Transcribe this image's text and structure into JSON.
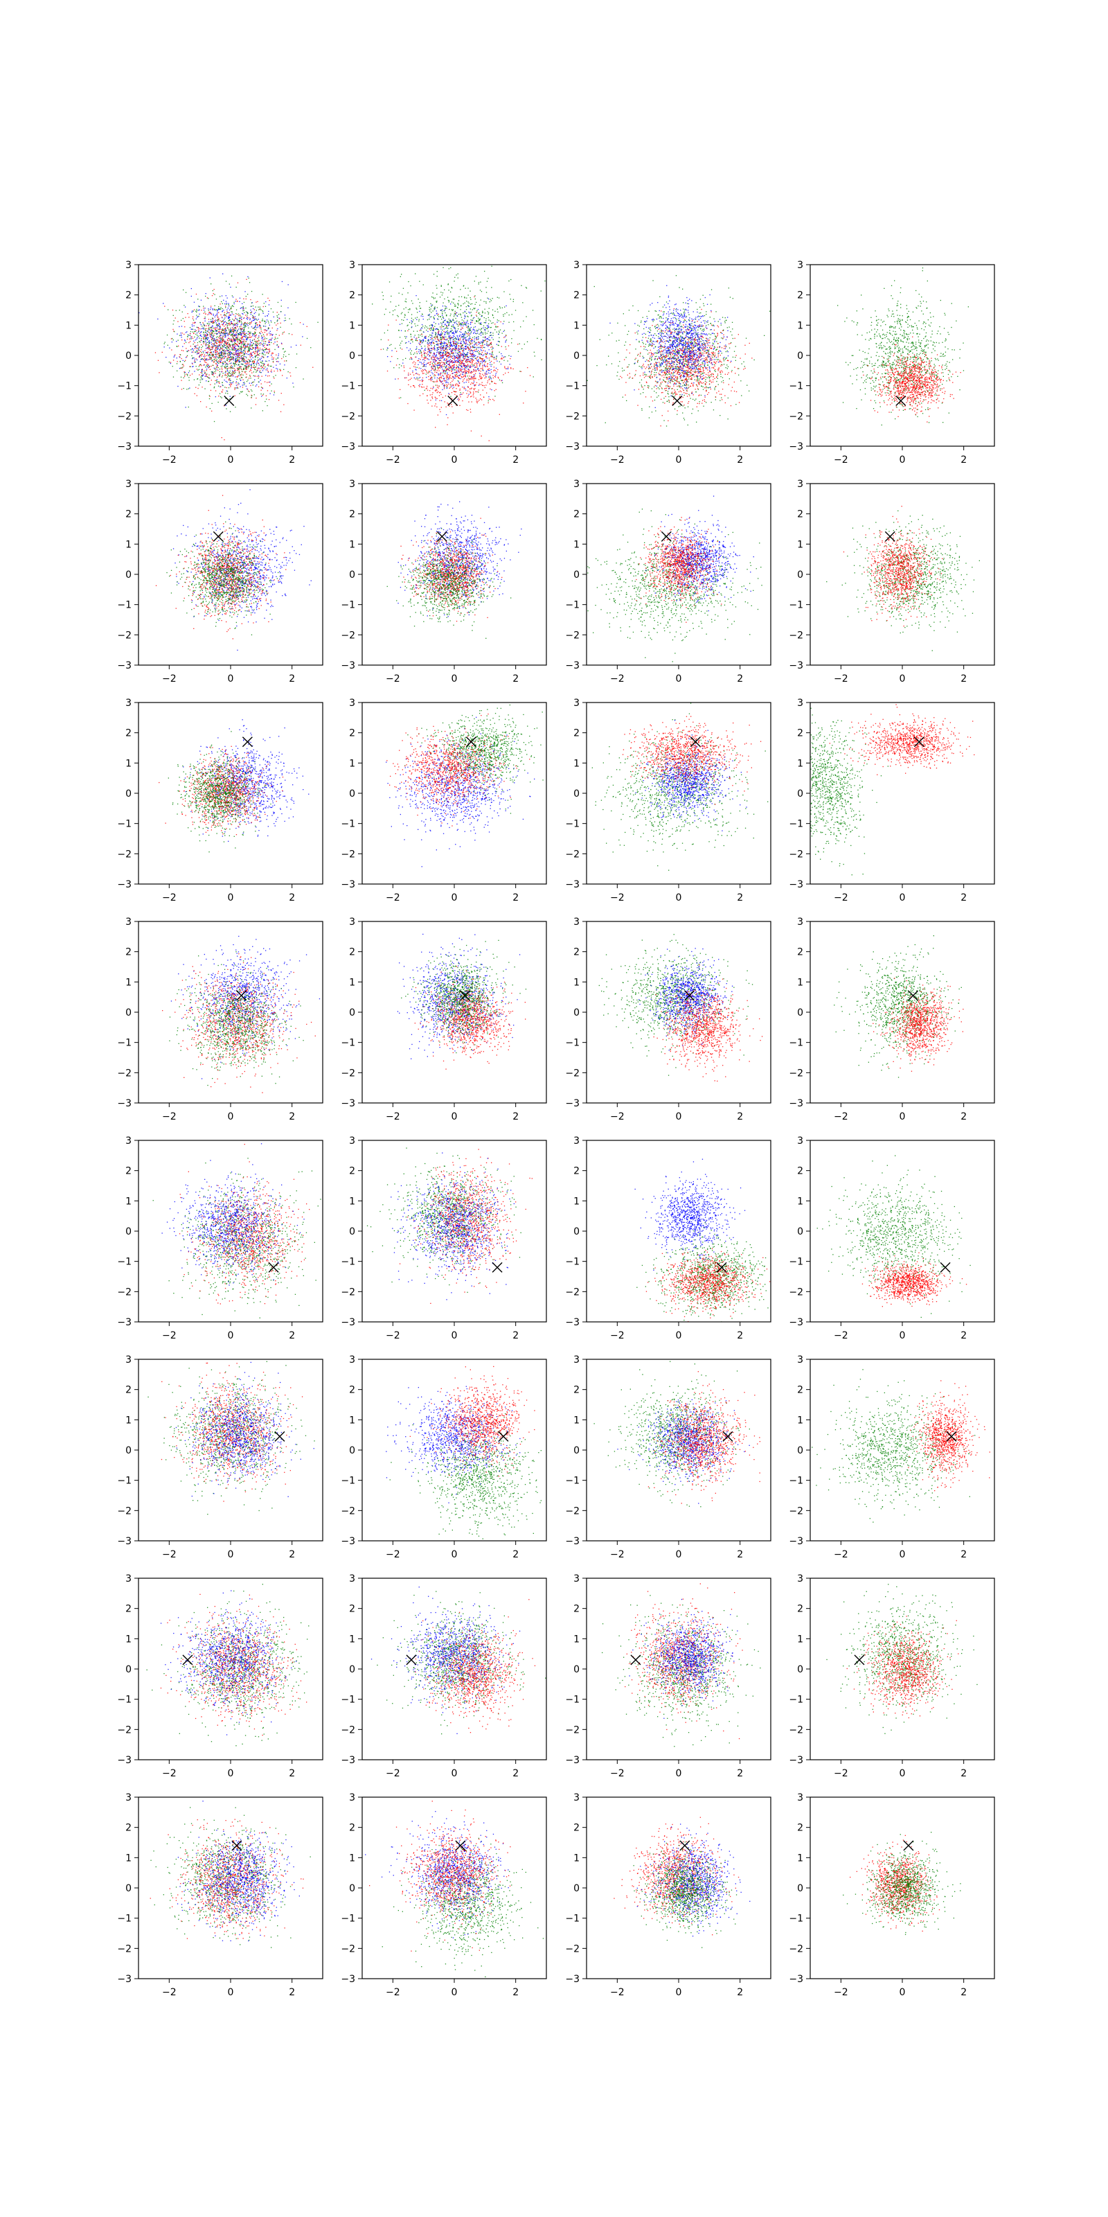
{
  "figure": {
    "rows": 8,
    "cols": 4,
    "background": "#ffffff"
  },
  "colors": {
    "blue": "#0000ff",
    "red": "#ff0000",
    "green": "#008000",
    "marker": "#000000",
    "axes": "#000000"
  },
  "axes_common": {
    "xlim": [
      -3,
      3
    ],
    "ylim": [
      -3,
      3
    ],
    "xticks": [
      -2,
      0,
      2
    ],
    "yticks": [
      -3,
      -2,
      -1,
      0,
      1,
      2,
      3
    ],
    "xtick_labels": [
      "−2",
      "0",
      "2"
    ],
    "ytick_labels": [
      "−3",
      "−2",
      "−1",
      "0",
      "1",
      "2",
      "3"
    ],
    "grid": false,
    "legend": false,
    "title": "",
    "xlabel": "",
    "ylabel": ""
  },
  "chart_data": {
    "type": "scatter",
    "description_of_series": "Each panel shows three point clouds (blue, red, green) drawn around estimated centers with estimated spreads, plus one black x marker at the same position for every panel of a row.",
    "rows": [
      {
        "marker": [
          -0.05,
          -1.5
        ],
        "panels": [
          {
            "clouds": [
              {
                "color": "blue",
                "cx": 0.0,
                "cy": 0.4,
                "sx": 0.75,
                "sy": 0.7
              },
              {
                "color": "red",
                "cx": 0.0,
                "cy": 0.3,
                "sx": 0.8,
                "sy": 0.75
              },
              {
                "color": "green",
                "cx": 0.0,
                "cy": 0.3,
                "sx": 0.85,
                "sy": 0.8
              }
            ]
          },
          {
            "clouds": [
              {
                "color": "green",
                "cx": 0.0,
                "cy": 0.9,
                "sx": 1.0,
                "sy": 0.85
              },
              {
                "color": "blue",
                "cx": 0.0,
                "cy": 0.2,
                "sx": 0.7,
                "sy": 0.6
              },
              {
                "color": "red",
                "cx": 0.0,
                "cy": -0.4,
                "sx": 0.8,
                "sy": 0.65
              }
            ]
          },
          {
            "clouds": [
              {
                "color": "green",
                "cx": 0.0,
                "cy": 0.0,
                "sx": 0.9,
                "sy": 0.85
              },
              {
                "color": "red",
                "cx": 0.2,
                "cy": -0.3,
                "sx": 0.7,
                "sy": 0.6
              },
              {
                "color": "blue",
                "cx": 0.1,
                "cy": 0.4,
                "sx": 0.55,
                "sy": 0.6
              }
            ]
          },
          {
            "clouds": [
              {
                "color": "green",
                "cx": 0.0,
                "cy": 0.0,
                "sx": 0.75,
                "sy": 0.85
              },
              {
                "color": "red",
                "cx": 0.3,
                "cy": -0.9,
                "sx": 0.5,
                "sy": 0.4
              }
            ]
          }
        ]
      },
      {
        "marker": [
          -0.4,
          1.25
        ],
        "panels": [
          {
            "clouds": [
              {
                "color": "blue",
                "cx": 0.3,
                "cy": 0.2,
                "sx": 0.75,
                "sy": 0.7
              },
              {
                "color": "red",
                "cx": -0.1,
                "cy": 0.0,
                "sx": 0.6,
                "sy": 0.65
              },
              {
                "color": "green",
                "cx": -0.2,
                "cy": -0.1,
                "sx": 0.6,
                "sy": 0.6
              }
            ]
          },
          {
            "clouds": [
              {
                "color": "blue",
                "cx": 0.1,
                "cy": 0.5,
                "sx": 0.7,
                "sy": 0.65
              },
              {
                "color": "red",
                "cx": -0.1,
                "cy": 0.0,
                "sx": 0.55,
                "sy": 0.5
              },
              {
                "color": "green",
                "cx": -0.2,
                "cy": -0.3,
                "sx": 0.6,
                "sy": 0.55
              }
            ]
          },
          {
            "clouds": [
              {
                "color": "green",
                "cx": -0.3,
                "cy": -0.4,
                "sx": 1.1,
                "sy": 0.8
              },
              {
                "color": "blue",
                "cx": 0.6,
                "cy": 0.5,
                "sx": 0.55,
                "sy": 0.55
              },
              {
                "color": "red",
                "cx": 0.0,
                "cy": 0.3,
                "sx": 0.5,
                "sy": 0.5
              }
            ]
          },
          {
            "clouds": [
              {
                "color": "green",
                "cx": 0.3,
                "cy": 0.0,
                "sx": 0.8,
                "sy": 0.75
              },
              {
                "color": "red",
                "cx": -0.1,
                "cy": 0.1,
                "sx": 0.45,
                "sy": 0.6
              }
            ]
          }
        ]
      },
      {
        "marker": [
          0.55,
          1.7
        ],
        "panels": [
          {
            "clouds": [
              {
                "color": "blue",
                "cx": 0.5,
                "cy": 0.3,
                "sx": 0.7,
                "sy": 0.65
              },
              {
                "color": "red",
                "cx": -0.2,
                "cy": 0.1,
                "sx": 0.55,
                "sy": 0.55
              },
              {
                "color": "green",
                "cx": -0.4,
                "cy": 0.0,
                "sx": 0.55,
                "sy": 0.55
              }
            ]
          },
          {
            "clouds": [
              {
                "color": "blue",
                "cx": 0.0,
                "cy": 0.2,
                "sx": 0.8,
                "sy": 0.7
              },
              {
                "color": "green",
                "cx": 0.9,
                "cy": 1.4,
                "sx": 0.7,
                "sy": 0.55
              },
              {
                "color": "red",
                "cx": -0.2,
                "cy": 0.8,
                "sx": 0.75,
                "sy": 0.55
              }
            ]
          },
          {
            "clouds": [
              {
                "color": "green",
                "cx": -0.1,
                "cy": 0.1,
                "sx": 1.0,
                "sy": 0.85
              },
              {
                "color": "blue",
                "cx": 0.3,
                "cy": 0.4,
                "sx": 0.55,
                "sy": 0.5
              },
              {
                "color": "red",
                "cx": 0.2,
                "cy": 1.3,
                "sx": 0.8,
                "sy": 0.45
              }
            ]
          },
          {
            "clouds": [
              {
                "color": "green",
                "cx": -2.5,
                "cy": 0.3,
                "sx": 0.6,
                "sy": 1.0
              },
              {
                "color": "red",
                "cx": 0.2,
                "cy": 1.7,
                "sx": 0.75,
                "sy": 0.35
              }
            ]
          }
        ]
      },
      {
        "marker": [
          0.35,
          0.55
        ],
        "panels": [
          {
            "clouds": [
              {
                "color": "blue",
                "cx": 0.4,
                "cy": 0.5,
                "sx": 0.7,
                "sy": 0.7
              },
              {
                "color": "red",
                "cx": 0.2,
                "cy": -0.3,
                "sx": 0.75,
                "sy": 0.75
              },
              {
                "color": "green",
                "cx": 0.2,
                "cy": -0.4,
                "sx": 0.7,
                "sy": 0.7
              }
            ]
          },
          {
            "clouds": [
              {
                "color": "blue",
                "cx": 0.0,
                "cy": 0.4,
                "sx": 0.7,
                "sy": 0.7
              },
              {
                "color": "red",
                "cx": 0.5,
                "cy": -0.2,
                "sx": 0.6,
                "sy": 0.55
              },
              {
                "color": "green",
                "cx": 0.2,
                "cy": 0.5,
                "sx": 0.6,
                "sy": 0.6
              }
            ]
          },
          {
            "clouds": [
              {
                "color": "green",
                "cx": -0.2,
                "cy": 0.5,
                "sx": 0.85,
                "sy": 0.75
              },
              {
                "color": "blue",
                "cx": 0.3,
                "cy": 0.5,
                "sx": 0.5,
                "sy": 0.5
              },
              {
                "color": "red",
                "cx": 0.8,
                "cy": -0.5,
                "sx": 0.55,
                "sy": 0.6
              }
            ]
          },
          {
            "clouds": [
              {
                "color": "green",
                "cx": 0.0,
                "cy": 0.3,
                "sx": 0.65,
                "sy": 0.75
              },
              {
                "color": "red",
                "cx": 0.6,
                "cy": -0.4,
                "sx": 0.45,
                "sy": 0.5
              }
            ]
          }
        ]
      },
      {
        "marker": [
          1.4,
          -1.2
        ],
        "panels": [
          {
            "clouds": [
              {
                "color": "green",
                "cx": 0.4,
                "cy": -0.3,
                "sx": 0.9,
                "sy": 0.85
              },
              {
                "color": "red",
                "cx": 0.5,
                "cy": -0.2,
                "sx": 0.75,
                "sy": 0.75
              },
              {
                "color": "blue",
                "cx": 0.0,
                "cy": 0.2,
                "sx": 0.75,
                "sy": 0.7
              }
            ]
          },
          {
            "clouds": [
              {
                "color": "green",
                "cx": -0.2,
                "cy": 0.5,
                "sx": 0.8,
                "sy": 0.75
              },
              {
                "color": "red",
                "cx": 0.4,
                "cy": 0.4,
                "sx": 0.65,
                "sy": 0.8
              },
              {
                "color": "blue",
                "cx": 0.0,
                "cy": 0.2,
                "sx": 0.7,
                "sy": 0.7
              }
            ]
          },
          {
            "clouds": [
              {
                "color": "blue",
                "cx": 0.4,
                "cy": 0.5,
                "sx": 0.55,
                "sy": 0.55
              },
              {
                "color": "green",
                "cx": 1.1,
                "cy": -1.5,
                "sx": 0.8,
                "sy": 0.6
              },
              {
                "color": "red",
                "cx": 0.9,
                "cy": -1.7,
                "sx": 0.65,
                "sy": 0.4
              }
            ]
          },
          {
            "clouds": [
              {
                "color": "green",
                "cx": -0.2,
                "cy": -0.1,
                "sx": 0.9,
                "sy": 0.8
              },
              {
                "color": "red",
                "cx": 0.2,
                "cy": -1.7,
                "sx": 0.55,
                "sy": 0.3
              }
            ]
          }
        ]
      },
      {
        "marker": [
          1.6,
          0.45
        ],
        "panels": [
          {
            "clouds": [
              {
                "color": "green",
                "cx": 0.0,
                "cy": 0.6,
                "sx": 0.85,
                "sy": 0.85
              },
              {
                "color": "red",
                "cx": 0.0,
                "cy": 0.6,
                "sx": 0.75,
                "sy": 0.75
              },
              {
                "color": "blue",
                "cx": 0.3,
                "cy": 0.5,
                "sx": 0.7,
                "sy": 0.7
              }
            ]
          },
          {
            "clouds": [
              {
                "color": "green",
                "cx": 0.8,
                "cy": -0.9,
                "sx": 0.8,
                "sy": 0.75
              },
              {
                "color": "blue",
                "cx": 0.0,
                "cy": 0.4,
                "sx": 0.75,
                "sy": 0.6
              },
              {
                "color": "red",
                "cx": 0.9,
                "cy": 0.9,
                "sx": 0.6,
                "sy": 0.55
              }
            ]
          },
          {
            "clouds": [
              {
                "color": "green",
                "cx": -0.1,
                "cy": 0.5,
                "sx": 0.8,
                "sy": 0.75
              },
              {
                "color": "blue",
                "cx": 0.3,
                "cy": 0.3,
                "sx": 0.6,
                "sy": 0.55
              },
              {
                "color": "red",
                "cx": 0.8,
                "cy": 0.3,
                "sx": 0.6,
                "sy": 0.65
              }
            ]
          },
          {
            "clouds": [
              {
                "color": "green",
                "cx": -0.3,
                "cy": 0.0,
                "sx": 0.85,
                "sy": 0.8
              },
              {
                "color": "red",
                "cx": 1.4,
                "cy": 0.4,
                "sx": 0.4,
                "sy": 0.55
              }
            ]
          }
        ]
      },
      {
        "marker": [
          -1.4,
          0.3
        ],
        "panels": [
          {
            "clouds": [
              {
                "color": "green",
                "cx": 0.3,
                "cy": 0.0,
                "sx": 0.85,
                "sy": 0.85
              },
              {
                "color": "red",
                "cx": 0.2,
                "cy": 0.1,
                "sx": 0.8,
                "sy": 0.8
              },
              {
                "color": "blue",
                "cx": 0.0,
                "cy": 0.3,
                "sx": 0.75,
                "sy": 0.7
              }
            ]
          },
          {
            "clouds": [
              {
                "color": "green",
                "cx": 0.1,
                "cy": 0.3,
                "sx": 0.8,
                "sy": 0.75
              },
              {
                "color": "blue",
                "cx": 0.0,
                "cy": 0.5,
                "sx": 0.7,
                "sy": 0.65
              },
              {
                "color": "red",
                "cx": 0.7,
                "cy": -0.2,
                "sx": 0.65,
                "sy": 0.65
              }
            ]
          },
          {
            "clouds": [
              {
                "color": "green",
                "cx": 0.2,
                "cy": 0.0,
                "sx": 0.8,
                "sy": 0.8
              },
              {
                "color": "red",
                "cx": 0.0,
                "cy": 0.3,
                "sx": 0.65,
                "sy": 0.75
              },
              {
                "color": "blue",
                "cx": 0.4,
                "cy": 0.4,
                "sx": 0.55,
                "sy": 0.55
              }
            ]
          },
          {
            "clouds": [
              {
                "color": "green",
                "cx": 0.0,
                "cy": 0.4,
                "sx": 0.75,
                "sy": 0.8
              },
              {
                "color": "red",
                "cx": 0.1,
                "cy": 0.0,
                "sx": 0.55,
                "sy": 0.6
              }
            ]
          }
        ]
      },
      {
        "marker": [
          0.2,
          1.4
        ],
        "panels": [
          {
            "clouds": [
              {
                "color": "green",
                "cx": -0.1,
                "cy": 0.3,
                "sx": 0.85,
                "sy": 0.8
              },
              {
                "color": "red",
                "cx": 0.0,
                "cy": 0.2,
                "sx": 0.75,
                "sy": 0.75
              },
              {
                "color": "blue",
                "cx": 0.3,
                "cy": 0.3,
                "sx": 0.7,
                "sy": 0.7
              }
            ]
          },
          {
            "clouds": [
              {
                "color": "green",
                "cx": 0.4,
                "cy": -0.5,
                "sx": 0.8,
                "sy": 0.8
              },
              {
                "color": "blue",
                "cx": 0.0,
                "cy": 0.5,
                "sx": 0.7,
                "sy": 0.65
              },
              {
                "color": "red",
                "cx": -0.1,
                "cy": 0.5,
                "sx": 0.7,
                "sy": 0.7
              }
            ]
          },
          {
            "clouds": [
              {
                "color": "red",
                "cx": -0.1,
                "cy": 0.4,
                "sx": 0.65,
                "sy": 0.65
              },
              {
                "color": "blue",
                "cx": 0.5,
                "cy": 0.2,
                "sx": 0.55,
                "sy": 0.6
              },
              {
                "color": "green",
                "cx": 0.2,
                "cy": -0.1,
                "sx": 0.55,
                "sy": 0.55
              }
            ]
          },
          {
            "clouds": [
              {
                "color": "red",
                "cx": -0.1,
                "cy": 0.1,
                "sx": 0.45,
                "sy": 0.5
              },
              {
                "color": "green",
                "cx": 0.1,
                "cy": 0.0,
                "sx": 0.55,
                "sy": 0.55
              }
            ]
          }
        ]
      }
    ]
  }
}
